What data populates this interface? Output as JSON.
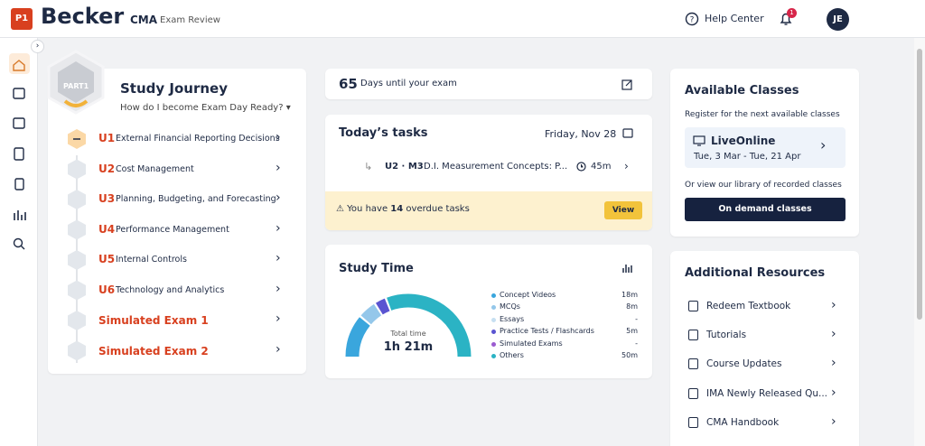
{
  "header": {
    "badge": "P1",
    "logo": "Becker",
    "product": "CMA",
    "product_sub": "Exam Review",
    "help": "Help Center",
    "notifications": 1,
    "avatar": "JE"
  },
  "journey": {
    "part": "PART1",
    "title": "Study Journey",
    "subtitle": "How do I become Exam Day Ready?",
    "units": [
      {
        "code": "U1",
        "name": "External Financial Reporting Decisions"
      },
      {
        "code": "U2",
        "name": "Cost Management"
      },
      {
        "code": "U3",
        "name": "Planning, Budgeting, and Forecasting"
      },
      {
        "code": "U4",
        "name": "Performance Management"
      },
      {
        "code": "U5",
        "name": "Internal Controls"
      },
      {
        "code": "U6",
        "name": "Technology and Analytics"
      }
    ],
    "exams": [
      "Simulated Exam 1",
      "Simulated Exam 2"
    ]
  },
  "countdown": {
    "days": 65,
    "text": "Days until your exam"
  },
  "tasks": {
    "title": "Today’s tasks",
    "date": "Friday, Nov 28",
    "task": {
      "code": "U2 · M3",
      "name": "D.I. Measurement Concepts: P...",
      "duration": "45m"
    },
    "overdue": {
      "prefix": "You have",
      "count": 14,
      "suffix": "overdue tasks"
    },
    "view": "View"
  },
  "study_time": {
    "title": "Study Time",
    "total_label": "Total time",
    "total": "1h 21m",
    "items": [
      {
        "name": "Concept Videos",
        "color": "#3aa6dd",
        "value": 18,
        "label": "18m"
      },
      {
        "name": "MCQs",
        "color": "#94c7ea",
        "value": 8,
        "label": "8m"
      },
      {
        "name": "Essays",
        "color": "#c6dff1",
        "value": null,
        "label": "-"
      },
      {
        "name": "Practice Tests / Flashcards",
        "color": "#5a54d1",
        "value": 5,
        "label": "5m"
      },
      {
        "name": "Simulated Exams",
        "color": "#9b5bd0",
        "value": null,
        "label": "-"
      },
      {
        "name": "Others",
        "color": "#2bb3c4",
        "value": 50,
        "label": "50m"
      }
    ]
  },
  "classes": {
    "title": "Available Classes",
    "subtitle": "Register for the next available classes",
    "live": {
      "name": "LiveOnline",
      "dates": "Tue, 3 Mar - Tue, 21 Apr"
    },
    "recorded": "Or view our library of recorded classes",
    "button": "On demand classes"
  },
  "resources": {
    "title": "Additional Resources",
    "items": [
      "Redeem Textbook",
      "Tutorials",
      "Course Updates",
      "IMA Newly Released Qu...",
      "CMA Handbook"
    ]
  }
}
